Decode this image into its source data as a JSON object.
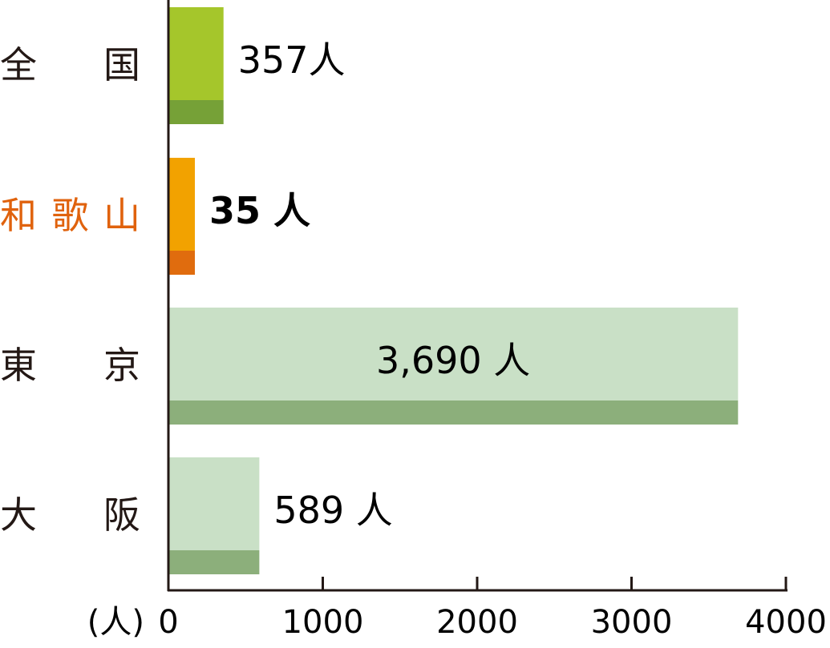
{
  "chart_data": {
    "type": "bar",
    "orientation": "horizontal",
    "categories": [
      "全　国",
      "和歌山",
      "東　京",
      "大　阪"
    ],
    "values": [
      357,
      35,
      3690,
      589
    ],
    "value_labels": [
      "357人",
      "35 人",
      "3,690 人",
      "589 人"
    ],
    "unit_label": "(人)",
    "xlim": [
      0,
      4000
    ],
    "xticks": [
      "0",
      "1000",
      "2000",
      "3000",
      "4000"
    ],
    "grid": false,
    "colors": {
      "bar_top": [
        "#a5c62b",
        "#f2a200",
        "#c9e0c6",
        "#c9e0c6"
      ],
      "bar_bottom": [
        "#76a137",
        "#e06c0e",
        "#8caf7b",
        "#8caf7b"
      ],
      "category_text": [
        "#231815",
        "#e0620d",
        "#231815",
        "#231815"
      ],
      "axis": "#231815"
    }
  }
}
